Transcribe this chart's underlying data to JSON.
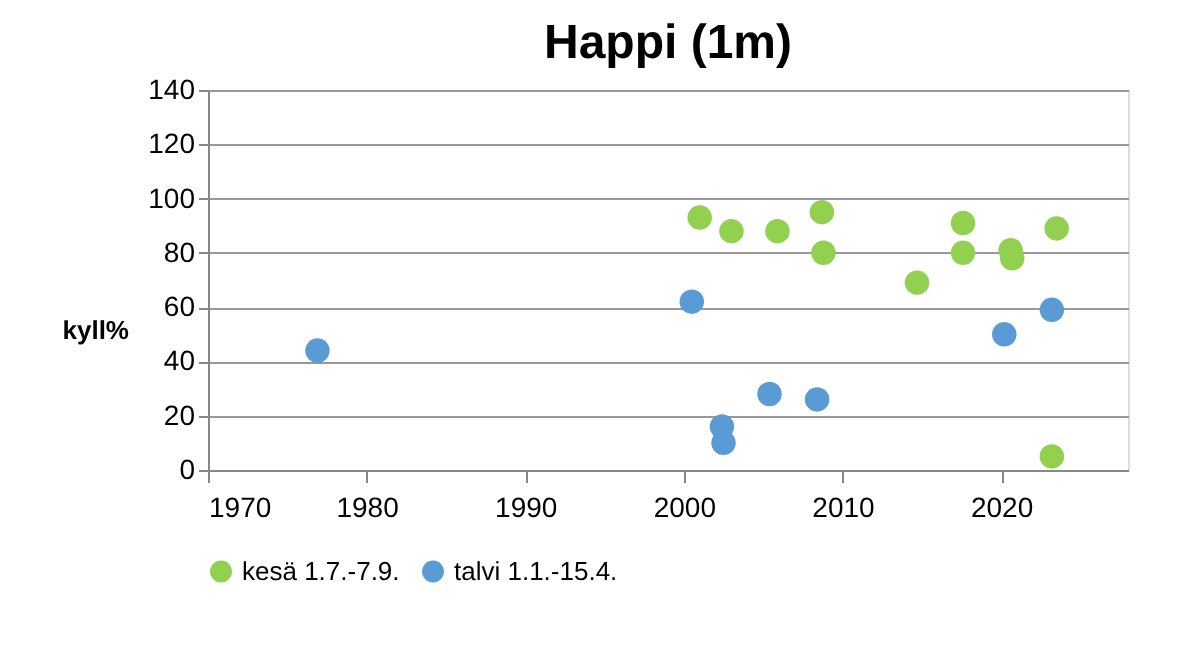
{
  "chart_data": {
    "type": "scatter",
    "title": "Happi (1m)",
    "ylabel": "kyll%",
    "xlim": [
      1970,
      2028
    ],
    "xticks": [
      1970,
      1980,
      1990,
      2000,
      2010,
      2020
    ],
    "ylim": [
      0,
      140
    ],
    "yticks": [
      0,
      20,
      40,
      60,
      80,
      100,
      120,
      140
    ],
    "grid": "y",
    "legend": "bottom",
    "marker": "circle",
    "series": [
      {
        "name": "kesä 1.7.-7.9.",
        "color": "#92d050",
        "x": [
          2001.0,
          2003.0,
          2005.9,
          2008.7,
          2008.8,
          2014.7,
          2017.6,
          2017.6,
          2020.6,
          2020.7,
          2023.5,
          2023.2
        ],
        "values": [
          93,
          88,
          88,
          95,
          80,
          69,
          91,
          80,
          81,
          78,
          89,
          5
        ]
      },
      {
        "name": "talvi 1.1.-15.4.",
        "color": "#5b9bd5",
        "x": [
          1976.9,
          2000.5,
          2002.4,
          2002.5,
          2005.4,
          2008.4,
          2020.2,
          2023.2
        ],
        "values": [
          44,
          62,
          16,
          10,
          28,
          26,
          50,
          59
        ]
      }
    ]
  }
}
